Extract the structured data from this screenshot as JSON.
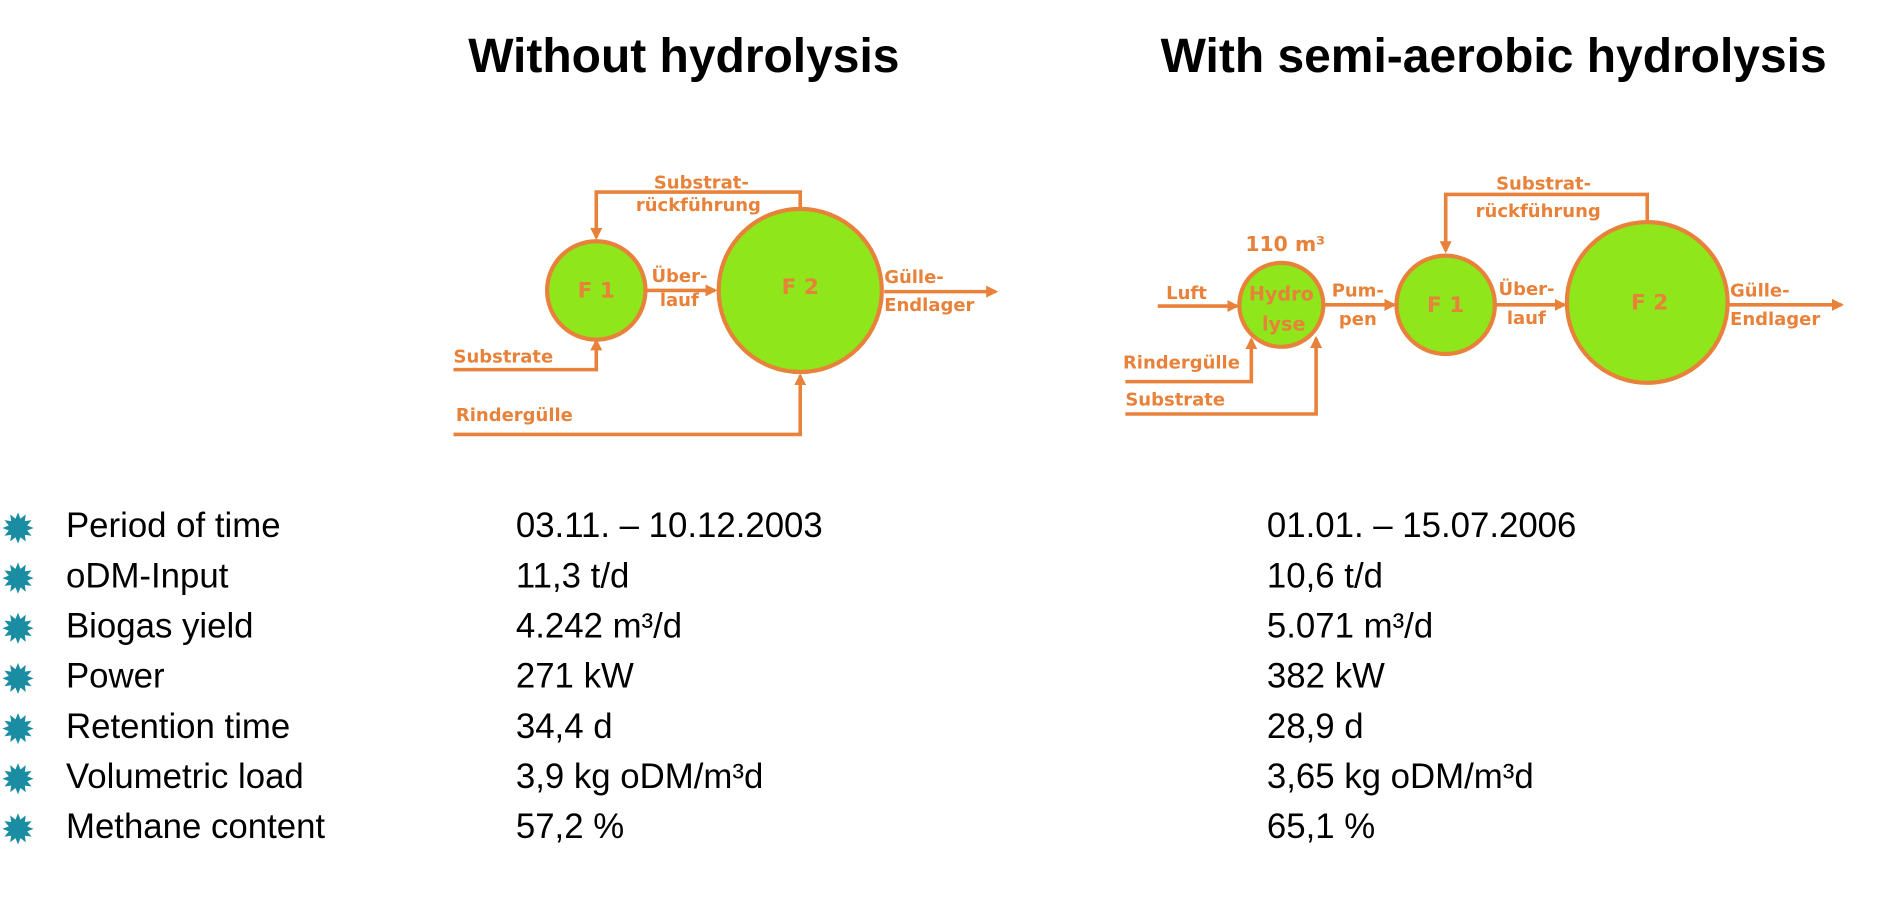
{
  "titles": [
    "Without hydrolysis",
    "With semi-aerobic hydrolysis"
  ],
  "diagram_left": {
    "nodes": [
      "F 1",
      "F 2"
    ],
    "labels": [
      "Substrat-",
      "rückführung",
      "Über-",
      "lauf",
      "Gülle-",
      "Endlager",
      "Substrate",
      "Rindergülle"
    ]
  },
  "diagram_right": {
    "nodes": [
      "Hydro",
      "lyse",
      "F 1",
      "F 2"
    ],
    "labels": [
      "110 m³",
      "Luft",
      "Pum-",
      "pen",
      "Über-",
      "lauf",
      "Substrat-",
      "rückführung",
      "Gülle-",
      "Endlager",
      "Rindergülle",
      "Substrate"
    ]
  },
  "table": {
    "rows": [
      [
        "Period of time",
        "03.11. – 10.12.2003",
        "01.01. – 15.07.2006"
      ],
      [
        "oDM-Input",
        "11,3 t/d",
        "10,6 t/d"
      ],
      [
        "Biogas yield",
        "4.242 m³/d",
        "5.071 m³/d"
      ],
      [
        "Power",
        "271 kW",
        "382 kW"
      ],
      [
        "Retention time",
        "34,4 d",
        "28,9 d"
      ],
      [
        "Volumetric load",
        "3,9 kg oDM/m³d",
        "3,65 kg oDM/m³d"
      ],
      [
        "Methane content",
        "57,2 %",
        "65,1 %"
      ]
    ]
  }
}
